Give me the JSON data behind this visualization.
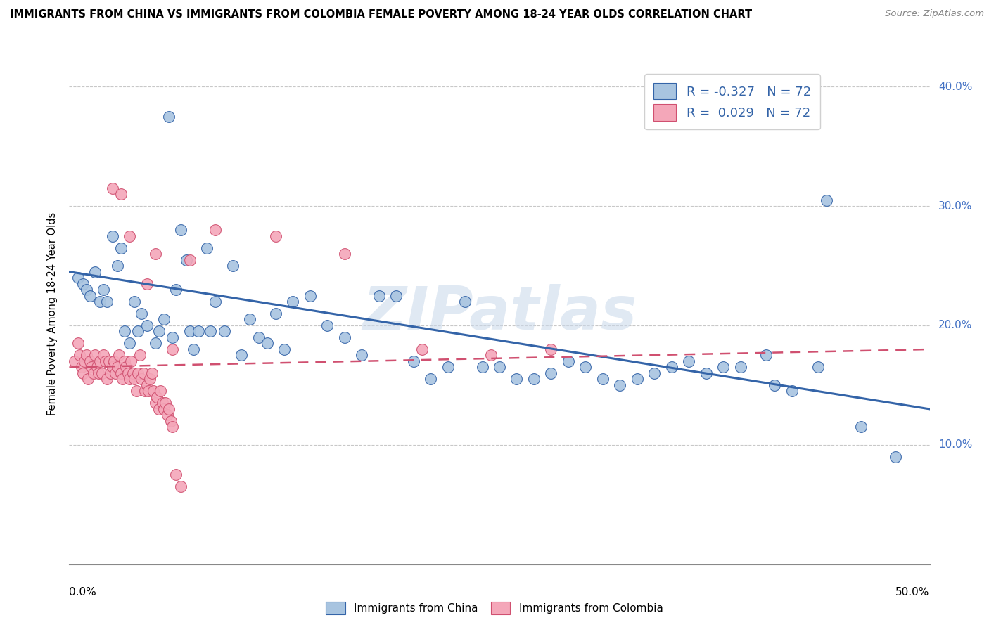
{
  "title": "IMMIGRANTS FROM CHINA VS IMMIGRANTS FROM COLOMBIA FEMALE POVERTY AMONG 18-24 YEAR OLDS CORRELATION CHART",
  "source": "Source: ZipAtlas.com",
  "ylabel": "Female Poverty Among 18-24 Year Olds",
  "legend_china_r": "-0.327",
  "legend_china_n": "72",
  "legend_colombia_r": "0.029",
  "legend_colombia_n": "72",
  "china_color": "#a8c4e0",
  "colombia_color": "#f4a7b9",
  "china_line_color": "#3464a8",
  "colombia_line_color": "#d05070",
  "background_color": "#ffffff",
  "watermark": "ZIPatlas",
  "china_scatter": [
    [
      0.5,
      24.0
    ],
    [
      0.8,
      23.5
    ],
    [
      1.0,
      23.0
    ],
    [
      1.2,
      22.5
    ],
    [
      1.5,
      24.5
    ],
    [
      1.8,
      22.0
    ],
    [
      2.0,
      23.0
    ],
    [
      2.2,
      22.0
    ],
    [
      2.5,
      27.5
    ],
    [
      2.8,
      25.0
    ],
    [
      3.0,
      26.5
    ],
    [
      3.2,
      19.5
    ],
    [
      3.5,
      18.5
    ],
    [
      3.8,
      22.0
    ],
    [
      4.0,
      19.5
    ],
    [
      4.2,
      21.0
    ],
    [
      4.5,
      20.0
    ],
    [
      5.0,
      18.5
    ],
    [
      5.2,
      19.5
    ],
    [
      5.5,
      20.5
    ],
    [
      5.8,
      37.5
    ],
    [
      6.0,
      19.0
    ],
    [
      6.2,
      23.0
    ],
    [
      6.5,
      28.0
    ],
    [
      6.8,
      25.5
    ],
    [
      7.0,
      19.5
    ],
    [
      7.2,
      18.0
    ],
    [
      7.5,
      19.5
    ],
    [
      8.0,
      26.5
    ],
    [
      8.2,
      19.5
    ],
    [
      8.5,
      22.0
    ],
    [
      9.0,
      19.5
    ],
    [
      9.5,
      25.0
    ],
    [
      10.0,
      17.5
    ],
    [
      10.5,
      20.5
    ],
    [
      11.0,
      19.0
    ],
    [
      11.5,
      18.5
    ],
    [
      12.0,
      21.0
    ],
    [
      12.5,
      18.0
    ],
    [
      13.0,
      22.0
    ],
    [
      14.0,
      22.5
    ],
    [
      15.0,
      20.0
    ],
    [
      16.0,
      19.0
    ],
    [
      17.0,
      17.5
    ],
    [
      18.0,
      22.5
    ],
    [
      19.0,
      22.5
    ],
    [
      20.0,
      17.0
    ],
    [
      21.0,
      15.5
    ],
    [
      22.0,
      16.5
    ],
    [
      23.0,
      22.0
    ],
    [
      24.0,
      16.5
    ],
    [
      25.0,
      16.5
    ],
    [
      26.0,
      15.5
    ],
    [
      27.0,
      15.5
    ],
    [
      28.0,
      16.0
    ],
    [
      29.0,
      17.0
    ],
    [
      30.0,
      16.5
    ],
    [
      31.0,
      15.5
    ],
    [
      32.0,
      15.0
    ],
    [
      33.0,
      15.5
    ],
    [
      34.0,
      16.0
    ],
    [
      35.0,
      16.5
    ],
    [
      36.0,
      17.0
    ],
    [
      37.0,
      16.0
    ],
    [
      38.0,
      16.5
    ],
    [
      39.0,
      16.5
    ],
    [
      40.5,
      17.5
    ],
    [
      41.0,
      15.0
    ],
    [
      42.0,
      14.5
    ],
    [
      43.5,
      16.5
    ],
    [
      44.0,
      30.5
    ],
    [
      46.0,
      11.5
    ],
    [
      48.0,
      9.0
    ]
  ],
  "colombia_scatter": [
    [
      0.3,
      17.0
    ],
    [
      0.5,
      18.5
    ],
    [
      0.6,
      17.5
    ],
    [
      0.7,
      16.5
    ],
    [
      0.8,
      16.0
    ],
    [
      0.9,
      17.0
    ],
    [
      1.0,
      17.5
    ],
    [
      1.1,
      15.5
    ],
    [
      1.2,
      17.0
    ],
    [
      1.3,
      16.5
    ],
    [
      1.4,
      16.0
    ],
    [
      1.5,
      17.5
    ],
    [
      1.6,
      16.5
    ],
    [
      1.7,
      16.0
    ],
    [
      1.8,
      17.0
    ],
    [
      1.9,
      16.0
    ],
    [
      2.0,
      17.5
    ],
    [
      2.1,
      17.0
    ],
    [
      2.2,
      15.5
    ],
    [
      2.3,
      17.0
    ],
    [
      2.4,
      16.0
    ],
    [
      2.5,
      16.5
    ],
    [
      2.6,
      17.0
    ],
    [
      2.7,
      16.0
    ],
    [
      2.8,
      16.5
    ],
    [
      2.9,
      17.5
    ],
    [
      3.0,
      16.0
    ],
    [
      3.1,
      15.5
    ],
    [
      3.2,
      17.0
    ],
    [
      3.3,
      16.5
    ],
    [
      3.4,
      16.0
    ],
    [
      3.5,
      15.5
    ],
    [
      3.6,
      17.0
    ],
    [
      3.7,
      16.0
    ],
    [
      3.8,
      15.5
    ],
    [
      3.9,
      14.5
    ],
    [
      4.0,
      16.0
    ],
    [
      4.1,
      17.5
    ],
    [
      4.2,
      15.5
    ],
    [
      4.3,
      16.0
    ],
    [
      4.4,
      14.5
    ],
    [
      4.5,
      15.0
    ],
    [
      4.6,
      14.5
    ],
    [
      4.7,
      15.5
    ],
    [
      4.8,
      16.0
    ],
    [
      4.9,
      14.5
    ],
    [
      5.0,
      13.5
    ],
    [
      5.1,
      14.0
    ],
    [
      5.2,
      13.0
    ],
    [
      5.3,
      14.5
    ],
    [
      5.4,
      13.5
    ],
    [
      5.5,
      13.0
    ],
    [
      5.6,
      13.5
    ],
    [
      5.7,
      12.5
    ],
    [
      5.8,
      13.0
    ],
    [
      5.9,
      12.0
    ],
    [
      6.0,
      11.5
    ],
    [
      6.2,
      7.5
    ],
    [
      6.5,
      6.5
    ],
    [
      2.5,
      31.5
    ],
    [
      3.0,
      31.0
    ],
    [
      3.5,
      27.5
    ],
    [
      4.5,
      23.5
    ],
    [
      5.0,
      26.0
    ],
    [
      6.0,
      18.0
    ],
    [
      7.0,
      25.5
    ],
    [
      8.5,
      28.0
    ],
    [
      12.0,
      27.5
    ],
    [
      16.0,
      26.0
    ],
    [
      20.5,
      18.0
    ],
    [
      24.5,
      17.5
    ],
    [
      28.0,
      18.0
    ]
  ],
  "xlim": [
    0,
    50
  ],
  "ylim": [
    0,
    42
  ],
  "ytick_vals": [
    10,
    20,
    30,
    40
  ],
  "ytick_labels": [
    "10.0%",
    "20.0%",
    "30.0%",
    "40.0%"
  ],
  "china_trend_x": [
    0,
    50
  ],
  "china_trend_y": [
    24.5,
    13.0
  ],
  "colombia_trend_x": [
    0,
    50
  ],
  "colombia_trend_y": [
    16.5,
    18.0
  ]
}
